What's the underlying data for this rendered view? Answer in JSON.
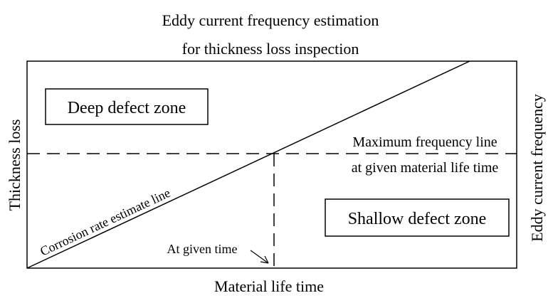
{
  "title": {
    "line1": "Eddy current frequency estimation",
    "line2": "for thickness loss inspection"
  },
  "axes": {
    "xlabel": "Material life time",
    "ylabel": "Thickness loss",
    "y2label": "Eddy current frequency"
  },
  "zones": {
    "deep": "Deep defect zone",
    "shallow": "Shallow defect zone"
  },
  "lines": {
    "corrosion": "Corrosion rate estimate line",
    "max_freq_line1": "Maximum frequency line",
    "max_freq_line2": "at given material life time"
  },
  "annotations": {
    "given_time": "At given time"
  },
  "colors": {
    "ink": "#000000",
    "background": "#ffffff"
  }
}
